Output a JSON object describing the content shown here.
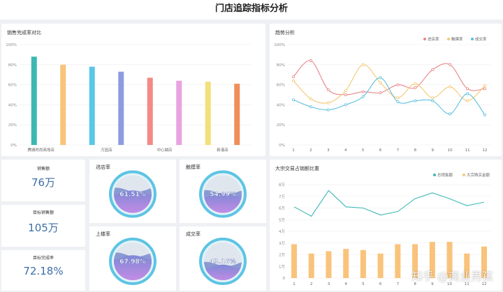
{
  "page_title": "门店追踪指标分析",
  "bar_panel": {
    "title": "销售完成率对比"
  },
  "trend_panel": {
    "title": "趋势分析"
  },
  "combo_panel": {
    "title": "大宗交易占销额比重"
  },
  "kpis": [
    {
      "label": "销售额",
      "value": "76万"
    },
    {
      "label": "目标销售额",
      "value": "105万"
    },
    {
      "label": "目标完成率",
      "value": "72.18%"
    }
  ],
  "gauges": [
    {
      "label": "进店率",
      "value_text": "61.51%",
      "value": 61.51
    },
    {
      "label": "触摸率",
      "value_text": "54.99%",
      "value": 54.99
    },
    {
      "label": "上楼率",
      "value_text": "67.98%",
      "value": 67.98
    },
    {
      "label": "成交率",
      "value_text": "43.16%",
      "value": 43.16
    }
  ],
  "watermark": "知乎 @商业男孩",
  "colors": {
    "teal": "#3cb8b3",
    "blue_text": "#3d6ea8"
  },
  "chart_data": [
    {
      "type": "bar",
      "title": "销售完成率对比",
      "categories": [
        "腾城时尚商场店",
        "",
        "万因店",
        "",
        "中心城店",
        "",
        "新港店",
        ""
      ],
      "values": [
        88,
        80,
        78,
        73,
        67,
        64,
        63,
        61
      ],
      "colors": [
        "#3cb8b3",
        "#f9c37b",
        "#5bc7e6",
        "#8e9be0",
        "#f28a85",
        "#e8a3e0",
        "#f3e07a",
        "#f08e5a"
      ],
      "ytick_labels": [
        "0%",
        "20%",
        "40%",
        "60%",
        "80%",
        "100%"
      ],
      "ylim": [
        0,
        100
      ],
      "grid": true
    },
    {
      "type": "line",
      "title": "趋势分析",
      "x": [
        1,
        2,
        3,
        4,
        5,
        6,
        7,
        8,
        9,
        10,
        11,
        12
      ],
      "ytick_labels": [
        "0%",
        "20%",
        "40%",
        "60%",
        "80%",
        "100%"
      ],
      "ylim": [
        0,
        100
      ],
      "legend": "top-right",
      "series": [
        {
          "name": "进店率",
          "color": "#e8868a",
          "values": [
            68,
            84,
            55,
            50,
            53,
            52,
            60,
            57,
            75,
            80,
            56,
            56
          ]
        },
        {
          "name": "触摸率",
          "color": "#f5c874",
          "values": [
            64,
            46,
            42,
            54,
            80,
            62,
            47,
            61,
            47,
            58,
            44,
            59
          ]
        },
        {
          "name": "成交率",
          "color": "#5cc0de",
          "values": [
            45,
            38,
            35,
            40,
            48,
            67,
            43,
            44,
            44,
            31,
            51,
            30
          ]
        }
      ]
    },
    {
      "type": "bar",
      "title": "大宗交易占销额比重",
      "x": [
        1,
        2,
        3,
        4,
        5,
        6,
        7,
        8,
        9,
        10,
        11,
        12
      ],
      "ytick_labels": [
        "0",
        "1万",
        "2万",
        "3万",
        "4万",
        "5万",
        "6万",
        "7万",
        "8万"
      ],
      "ylim": [
        0,
        8
      ],
      "legend": "top-right",
      "series": [
        {
          "name": "总销售额",
          "type": "line",
          "color": "#3cb8b3",
          "values": [
            6.1,
            5.3,
            7.5,
            6.1,
            6.0,
            5.4,
            5.7,
            6.8,
            7.3,
            6.8,
            6.2,
            6.5
          ]
        },
        {
          "name": "大宗购买金额",
          "type": "bar",
          "color": "#f9c37b",
          "values": [
            2.9,
            2.1,
            2.3,
            2.5,
            2.4,
            2.1,
            2.9,
            2.9,
            3.1,
            3.1,
            2.1,
            2.7
          ]
        }
      ]
    }
  ]
}
